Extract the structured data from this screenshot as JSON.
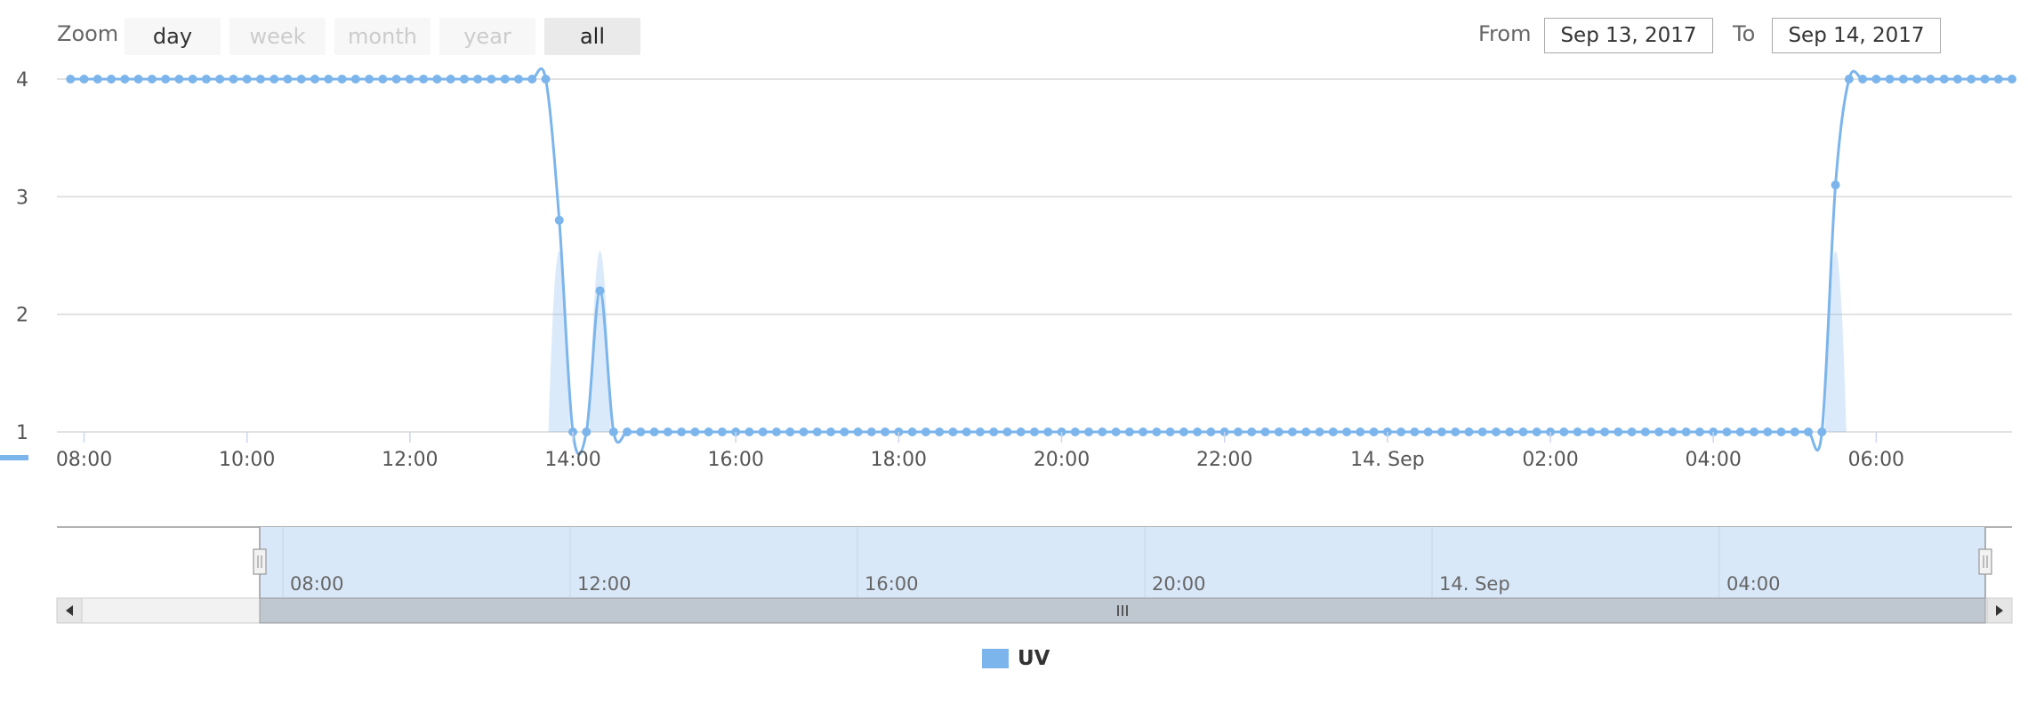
{
  "range_selector": {
    "zoom_label": "Zoom",
    "buttons": [
      {
        "label": "day",
        "state": "enabled"
      },
      {
        "label": "week",
        "state": "disabled"
      },
      {
        "label": "month",
        "state": "disabled"
      },
      {
        "label": "year",
        "state": "disabled"
      },
      {
        "label": "all",
        "state": "selected"
      }
    ],
    "from_label": "From",
    "from_value": "Sep 13, 2017",
    "to_label": "To",
    "to_value": "Sep 14, 2017"
  },
  "navigator": {
    "tick_labels": [
      "08:00",
      "12:00",
      "16:00",
      "20:00",
      "14. Sep",
      "04:00"
    ],
    "selected_range": [
      "Sep 13, 2017 07:30",
      "Sep 14, 2017 07:30"
    ]
  },
  "legend": {
    "label": "UV",
    "color": "#7cb5ec"
  },
  "chart_data": {
    "type": "line",
    "title": "",
    "xlabel": "",
    "ylabel": "",
    "grid": true,
    "legend_position": "bottom-center",
    "ylim": [
      1,
      4
    ],
    "y_ticks": [
      "1",
      "2",
      "3",
      "4"
    ],
    "x_tick_labels": [
      "08:00",
      "10:00",
      "12:00",
      "14:00",
      "16:00",
      "18:00",
      "20:00",
      "22:00",
      "14. Sep",
      "02:00",
      "04:00",
      "06:00"
    ],
    "x_range": [
      "2017-09-13 07:40",
      "2017-09-14 07:40"
    ],
    "series": [
      {
        "name": "UV",
        "color": "#7cb5ec",
        "sample_interval_minutes": 10,
        "points": [
          [
            "2017-09-13 07:50",
            4
          ],
          [
            "2017-09-13 08:00",
            4
          ],
          [
            "2017-09-13 08:10",
            4
          ],
          [
            "2017-09-13 08:20",
            4
          ],
          [
            "2017-09-13 08:30",
            4
          ],
          [
            "2017-09-13 08:40",
            4
          ],
          [
            "2017-09-13 08:50",
            4
          ],
          [
            "2017-09-13 09:00",
            4
          ],
          [
            "2017-09-13 09:10",
            4
          ],
          [
            "2017-09-13 09:20",
            4
          ],
          [
            "2017-09-13 09:30",
            4
          ],
          [
            "2017-09-13 09:40",
            4
          ],
          [
            "2017-09-13 09:50",
            4
          ],
          [
            "2017-09-13 10:00",
            4
          ],
          [
            "2017-09-13 10:10",
            4
          ],
          [
            "2017-09-13 10:20",
            4
          ],
          [
            "2017-09-13 10:30",
            4
          ],
          [
            "2017-09-13 10:40",
            4
          ],
          [
            "2017-09-13 10:50",
            4
          ],
          [
            "2017-09-13 11:00",
            4
          ],
          [
            "2017-09-13 11:10",
            4
          ],
          [
            "2017-09-13 11:20",
            4
          ],
          [
            "2017-09-13 11:30",
            4
          ],
          [
            "2017-09-13 11:40",
            4
          ],
          [
            "2017-09-13 11:50",
            4
          ],
          [
            "2017-09-13 12:00",
            4
          ],
          [
            "2017-09-13 12:10",
            4
          ],
          [
            "2017-09-13 12:20",
            4
          ],
          [
            "2017-09-13 12:30",
            4
          ],
          [
            "2017-09-13 12:40",
            4
          ],
          [
            "2017-09-13 12:50",
            4
          ],
          [
            "2017-09-13 13:00",
            4
          ],
          [
            "2017-09-13 13:10",
            4
          ],
          [
            "2017-09-13 13:20",
            4
          ],
          [
            "2017-09-13 13:30",
            4
          ],
          [
            "2017-09-13 13:40",
            4
          ],
          [
            "2017-09-13 13:50",
            2.8
          ],
          [
            "2017-09-13 14:00",
            1
          ],
          [
            "2017-09-13 14:10",
            1
          ],
          [
            "2017-09-13 14:20",
            2.2
          ],
          [
            "2017-09-13 14:30",
            1
          ],
          [
            "2017-09-13 14:40",
            1
          ],
          [
            "2017-09-13 14:50",
            1
          ],
          [
            "2017-09-13 15:00",
            1
          ],
          [
            "2017-09-13 15:10",
            1
          ],
          [
            "2017-09-13 15:20",
            1
          ],
          [
            "2017-09-13 15:30",
            1
          ],
          [
            "2017-09-13 15:40",
            1
          ],
          [
            "2017-09-13 15:50",
            1
          ],
          [
            "2017-09-13 16:00",
            1
          ],
          [
            "2017-09-13 16:10",
            1
          ],
          [
            "2017-09-13 16:20",
            1
          ],
          [
            "2017-09-13 16:30",
            1
          ],
          [
            "2017-09-13 16:40",
            1
          ],
          [
            "2017-09-13 16:50",
            1
          ],
          [
            "2017-09-13 17:00",
            1
          ],
          [
            "2017-09-13 17:10",
            1
          ],
          [
            "2017-09-13 17:20",
            1
          ],
          [
            "2017-09-13 17:30",
            1
          ],
          [
            "2017-09-13 17:40",
            1
          ],
          [
            "2017-09-13 17:50",
            1
          ],
          [
            "2017-09-13 18:00",
            1
          ],
          [
            "2017-09-13 18:10",
            1
          ],
          [
            "2017-09-13 18:20",
            1
          ],
          [
            "2017-09-13 18:30",
            1
          ],
          [
            "2017-09-13 18:40",
            1
          ],
          [
            "2017-09-13 18:50",
            1
          ],
          [
            "2017-09-13 19:00",
            1
          ],
          [
            "2017-09-13 19:10",
            1
          ],
          [
            "2017-09-13 19:20",
            1
          ],
          [
            "2017-09-13 19:30",
            1
          ],
          [
            "2017-09-13 19:40",
            1
          ],
          [
            "2017-09-13 19:50",
            1
          ],
          [
            "2017-09-13 20:00",
            1
          ],
          [
            "2017-09-13 20:10",
            1
          ],
          [
            "2017-09-13 20:20",
            1
          ],
          [
            "2017-09-13 20:30",
            1
          ],
          [
            "2017-09-13 20:40",
            1
          ],
          [
            "2017-09-13 20:50",
            1
          ],
          [
            "2017-09-13 21:00",
            1
          ],
          [
            "2017-09-13 21:10",
            1
          ],
          [
            "2017-09-13 21:20",
            1
          ],
          [
            "2017-09-13 21:30",
            1
          ],
          [
            "2017-09-13 21:40",
            1
          ],
          [
            "2017-09-13 21:50",
            1
          ],
          [
            "2017-09-13 22:00",
            1
          ],
          [
            "2017-09-13 22:10",
            1
          ],
          [
            "2017-09-13 22:20",
            1
          ],
          [
            "2017-09-13 22:30",
            1
          ],
          [
            "2017-09-13 22:40",
            1
          ],
          [
            "2017-09-13 22:50",
            1
          ],
          [
            "2017-09-13 23:00",
            1
          ],
          [
            "2017-09-13 23:10",
            1
          ],
          [
            "2017-09-13 23:20",
            1
          ],
          [
            "2017-09-13 23:30",
            1
          ],
          [
            "2017-09-13 23:40",
            1
          ],
          [
            "2017-09-13 23:50",
            1
          ],
          [
            "2017-09-14 00:00",
            1
          ],
          [
            "2017-09-14 00:10",
            1
          ],
          [
            "2017-09-14 00:20",
            1
          ],
          [
            "2017-09-14 00:30",
            1
          ],
          [
            "2017-09-14 00:40",
            1
          ],
          [
            "2017-09-14 00:50",
            1
          ],
          [
            "2017-09-14 01:00",
            1
          ],
          [
            "2017-09-14 01:10",
            1
          ],
          [
            "2017-09-14 01:20",
            1
          ],
          [
            "2017-09-14 01:30",
            1
          ],
          [
            "2017-09-14 01:40",
            1
          ],
          [
            "2017-09-14 01:50",
            1
          ],
          [
            "2017-09-14 02:00",
            1
          ],
          [
            "2017-09-14 02:10",
            1
          ],
          [
            "2017-09-14 02:20",
            1
          ],
          [
            "2017-09-14 02:30",
            1
          ],
          [
            "2017-09-14 02:40",
            1
          ],
          [
            "2017-09-14 02:50",
            1
          ],
          [
            "2017-09-14 03:00",
            1
          ],
          [
            "2017-09-14 03:10",
            1
          ],
          [
            "2017-09-14 03:20",
            1
          ],
          [
            "2017-09-14 03:30",
            1
          ],
          [
            "2017-09-14 03:40",
            1
          ],
          [
            "2017-09-14 03:50",
            1
          ],
          [
            "2017-09-14 04:00",
            1
          ],
          [
            "2017-09-14 04:10",
            1
          ],
          [
            "2017-09-14 04:20",
            1
          ],
          [
            "2017-09-14 04:30",
            1
          ],
          [
            "2017-09-14 04:40",
            1
          ],
          [
            "2017-09-14 04:50",
            1
          ],
          [
            "2017-09-14 05:00",
            1
          ],
          [
            "2017-09-14 05:10",
            1
          ],
          [
            "2017-09-14 05:20",
            1
          ],
          [
            "2017-09-14 05:30",
            3.1
          ],
          [
            "2017-09-14 05:40",
            4
          ],
          [
            "2017-09-14 05:50",
            4
          ],
          [
            "2017-09-14 06:00",
            4
          ],
          [
            "2017-09-14 06:10",
            4
          ],
          [
            "2017-09-14 06:20",
            4
          ],
          [
            "2017-09-14 06:30",
            4
          ],
          [
            "2017-09-14 06:40",
            4
          ],
          [
            "2017-09-14 06:50",
            4
          ],
          [
            "2017-09-14 07:00",
            4
          ],
          [
            "2017-09-14 07:10",
            4
          ],
          [
            "2017-09-14 07:20",
            4
          ],
          [
            "2017-09-14 07:30",
            4
          ],
          [
            "2017-09-14 07:40",
            4
          ]
        ]
      }
    ]
  }
}
